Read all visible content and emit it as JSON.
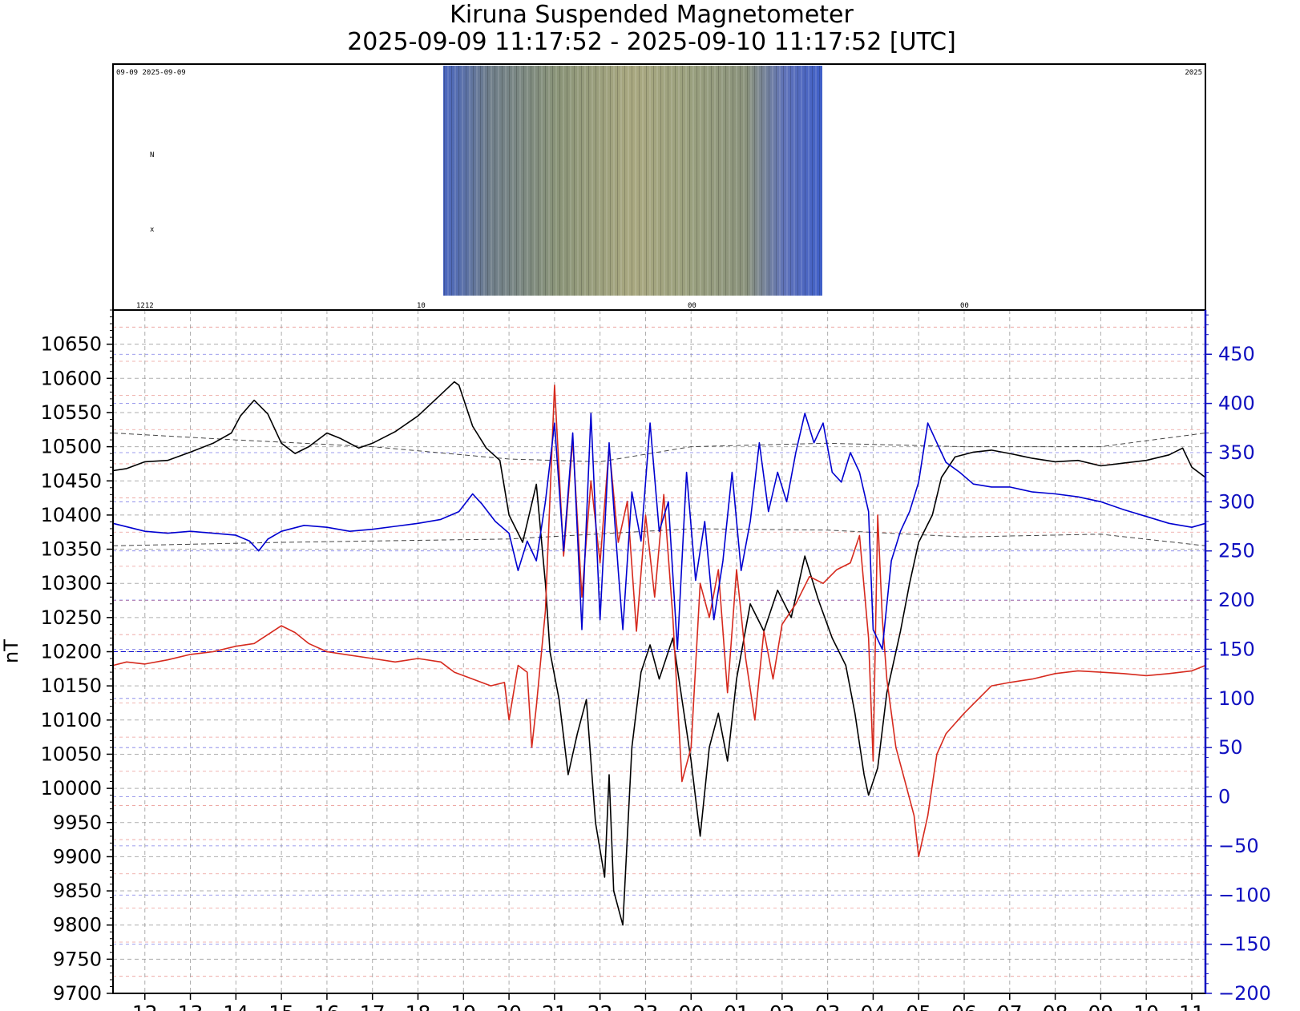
{
  "title_line1": "Kiruna Suspended Magnetometer",
  "title_line2": "2025-09-09 11:17:52 - 2025-09-10 11:17:52 [UTC]",
  "keogram": {
    "label_top_left": "09-09 2025-09-09",
    "label_top_right": "2025",
    "label_bottom": [
      "1212",
      "10",
      "00",
      "00"
    ]
  },
  "colors": {
    "black_series": "#000000",
    "red_series": "#d62a1e",
    "blue_series": "#0000d0",
    "right_axis": "#1010c0",
    "grid": "#999999"
  },
  "chart_data": {
    "type": "line",
    "title": "Kiruna Suspended Magnetometer",
    "subtitle": "2025-09-09 11:17:52 - 2025-09-10 11:17:52 [UTC]",
    "ylabel": "nT",
    "ylim": [
      9700,
      10700
    ],
    "y2lim": [
      -200,
      495
    ],
    "y_ticks": [
      "10650",
      "10600",
      "10550",
      "10500",
      "10450",
      "10400",
      "10350",
      "10300",
      "10250",
      "10200",
      "10150",
      "10100",
      "10050",
      "10000",
      "9950",
      "9900",
      "9850",
      "9800",
      "9750",
      "9700"
    ],
    "y2_ticks": [
      "450",
      "400",
      "350",
      "300",
      "250",
      "200",
      "150",
      "100",
      "50",
      "0",
      "−50",
      "−100",
      "−150",
      "−200"
    ],
    "x_ticks": [
      "12",
      "13",
      "14",
      "15",
      "16",
      "17",
      "18",
      "19",
      "20",
      "21",
      "22",
      "23",
      "00",
      "01",
      "02",
      "03",
      "04",
      "05",
      "06",
      "07",
      "08",
      "09",
      "10",
      "11"
    ],
    "xlim_hours": [
      11.3,
      35.3
    ],
    "grid": true,
    "series": [
      {
        "axis": "left",
        "color": "#000000",
        "points": [
          [
            11.3,
            10465
          ],
          [
            11.6,
            10468
          ],
          [
            12.0,
            10478
          ],
          [
            12.5,
            10480
          ],
          [
            13.0,
            10492
          ],
          [
            13.5,
            10505
          ],
          [
            13.9,
            10520
          ],
          [
            14.1,
            10545
          ],
          [
            14.4,
            10568
          ],
          [
            14.7,
            10548
          ],
          [
            15.0,
            10505
          ],
          [
            15.3,
            10490
          ],
          [
            15.6,
            10500
          ],
          [
            16.0,
            10520
          ],
          [
            16.3,
            10512
          ],
          [
            16.7,
            10498
          ],
          [
            17.0,
            10505
          ],
          [
            17.5,
            10522
          ],
          [
            18.0,
            10545
          ],
          [
            18.4,
            10570
          ],
          [
            18.8,
            10595
          ],
          [
            18.9,
            10590
          ],
          [
            19.2,
            10530
          ],
          [
            19.5,
            10498
          ],
          [
            19.8,
            10480
          ],
          [
            20.0,
            10400
          ],
          [
            20.3,
            10360
          ],
          [
            20.6,
            10445
          ],
          [
            20.8,
            10300
          ],
          [
            20.9,
            10200
          ],
          [
            21.1,
            10130
          ],
          [
            21.3,
            10020
          ],
          [
            21.5,
            10080
          ],
          [
            21.7,
            10130
          ],
          [
            21.9,
            9950
          ],
          [
            22.1,
            9870
          ],
          [
            22.2,
            10020
          ],
          [
            22.3,
            9850
          ],
          [
            22.5,
            9800
          ],
          [
            22.7,
            10060
          ],
          [
            22.9,
            10170
          ],
          [
            23.1,
            10210
          ],
          [
            23.3,
            10160
          ],
          [
            23.6,
            10220
          ],
          [
            23.8,
            10130
          ],
          [
            24.0,
            10040
          ],
          [
            24.2,
            9930
          ],
          [
            24.4,
            10060
          ],
          [
            24.6,
            10110
          ],
          [
            24.8,
            10040
          ],
          [
            25.0,
            10160
          ],
          [
            25.3,
            10270
          ],
          [
            25.6,
            10230
          ],
          [
            25.9,
            10290
          ],
          [
            26.2,
            10250
          ],
          [
            26.5,
            10340
          ],
          [
            26.8,
            10275
          ],
          [
            27.1,
            10220
          ],
          [
            27.4,
            10180
          ],
          [
            27.6,
            10110
          ],
          [
            27.8,
            10020
          ],
          [
            27.9,
            9990
          ],
          [
            28.1,
            10030
          ],
          [
            28.3,
            10140
          ],
          [
            28.6,
            10230
          ],
          [
            28.8,
            10300
          ],
          [
            29.0,
            10360
          ],
          [
            29.3,
            10400
          ],
          [
            29.5,
            10455
          ],
          [
            29.8,
            10485
          ],
          [
            30.2,
            10492
          ],
          [
            30.6,
            10495
          ],
          [
            31.0,
            10490
          ],
          [
            31.5,
            10483
          ],
          [
            32.0,
            10478
          ],
          [
            32.5,
            10480
          ],
          [
            33.0,
            10472
          ],
          [
            33.5,
            10476
          ],
          [
            34.0,
            10480
          ],
          [
            34.5,
            10488
          ],
          [
            34.8,
            10498
          ],
          [
            35.0,
            10470
          ],
          [
            35.3,
            10455
          ]
        ]
      },
      {
        "axis": "left",
        "color": "#d62a1e",
        "points": [
          [
            11.3,
            10180
          ],
          [
            11.6,
            10185
          ],
          [
            12.0,
            10182
          ],
          [
            12.5,
            10188
          ],
          [
            13.0,
            10196
          ],
          [
            13.5,
            10200
          ],
          [
            14.0,
            10208
          ],
          [
            14.4,
            10212
          ],
          [
            14.7,
            10225
          ],
          [
            15.0,
            10238
          ],
          [
            15.3,
            10228
          ],
          [
            15.6,
            10212
          ],
          [
            16.0,
            10200
          ],
          [
            16.5,
            10195
          ],
          [
            17.0,
            10190
          ],
          [
            17.5,
            10185
          ],
          [
            18.0,
            10190
          ],
          [
            18.5,
            10185
          ],
          [
            18.8,
            10170
          ],
          [
            19.2,
            10160
          ],
          [
            19.6,
            10150
          ],
          [
            19.9,
            10155
          ],
          [
            20.0,
            10100
          ],
          [
            20.2,
            10180
          ],
          [
            20.4,
            10170
          ],
          [
            20.5,
            10060
          ],
          [
            20.6,
            10120
          ],
          [
            20.8,
            10260
          ],
          [
            21.0,
            10590
          ],
          [
            21.2,
            10340
          ],
          [
            21.4,
            10510
          ],
          [
            21.6,
            10280
          ],
          [
            21.8,
            10450
          ],
          [
            22.0,
            10330
          ],
          [
            22.2,
            10500
          ],
          [
            22.4,
            10360
          ],
          [
            22.6,
            10420
          ],
          [
            22.8,
            10230
          ],
          [
            23.0,
            10400
          ],
          [
            23.2,
            10280
          ],
          [
            23.4,
            10430
          ],
          [
            23.6,
            10250
          ],
          [
            23.8,
            10010
          ],
          [
            24.0,
            10060
          ],
          [
            24.2,
            10300
          ],
          [
            24.4,
            10250
          ],
          [
            24.6,
            10320
          ],
          [
            24.8,
            10140
          ],
          [
            25.0,
            10320
          ],
          [
            25.2,
            10190
          ],
          [
            25.4,
            10100
          ],
          [
            25.6,
            10230
          ],
          [
            25.8,
            10160
          ],
          [
            26.0,
            10240
          ],
          [
            26.3,
            10270
          ],
          [
            26.6,
            10310
          ],
          [
            26.9,
            10300
          ],
          [
            27.2,
            10320
          ],
          [
            27.5,
            10330
          ],
          [
            27.7,
            10370
          ],
          [
            27.9,
            10220
          ],
          [
            28.0,
            10040
          ],
          [
            28.1,
            10400
          ],
          [
            28.2,
            10250
          ],
          [
            28.3,
            10160
          ],
          [
            28.5,
            10060
          ],
          [
            28.7,
            10010
          ],
          [
            28.9,
            9960
          ],
          [
            29.0,
            9900
          ],
          [
            29.2,
            9960
          ],
          [
            29.4,
            10050
          ],
          [
            29.6,
            10080
          ],
          [
            29.8,
            10095
          ],
          [
            30.0,
            10110
          ],
          [
            30.3,
            10130
          ],
          [
            30.6,
            10150
          ],
          [
            31.0,
            10155
          ],
          [
            31.5,
            10160
          ],
          [
            32.0,
            10168
          ],
          [
            32.5,
            10172
          ],
          [
            33.0,
            10170
          ],
          [
            33.5,
            10168
          ],
          [
            34.0,
            10165
          ],
          [
            34.5,
            10168
          ],
          [
            35.0,
            10172
          ],
          [
            35.3,
            10180
          ]
        ]
      },
      {
        "axis": "right",
        "color": "#0000d0",
        "points": [
          [
            11.3,
            278
          ],
          [
            12.0,
            270
          ],
          [
            12.5,
            268
          ],
          [
            13.0,
            270
          ],
          [
            13.5,
            268
          ],
          [
            14.0,
            266
          ],
          [
            14.3,
            260
          ],
          [
            14.5,
            250
          ],
          [
            14.7,
            262
          ],
          [
            15.0,
            270
          ],
          [
            15.5,
            276
          ],
          [
            16.0,
            274
          ],
          [
            16.5,
            270
          ],
          [
            17.0,
            272
          ],
          [
            17.5,
            275
          ],
          [
            18.0,
            278
          ],
          [
            18.5,
            282
          ],
          [
            18.9,
            290
          ],
          [
            19.2,
            308
          ],
          [
            19.4,
            298
          ],
          [
            19.7,
            280
          ],
          [
            20.0,
            268
          ],
          [
            20.2,
            230
          ],
          [
            20.4,
            260
          ],
          [
            20.6,
            240
          ],
          [
            20.8,
            300
          ],
          [
            21.0,
            380
          ],
          [
            21.2,
            250
          ],
          [
            21.4,
            370
          ],
          [
            21.6,
            170
          ],
          [
            21.8,
            390
          ],
          [
            22.0,
            180
          ],
          [
            22.2,
            360
          ],
          [
            22.4,
            230
          ],
          [
            22.5,
            170
          ],
          [
            22.7,
            310
          ],
          [
            22.9,
            260
          ],
          [
            23.1,
            380
          ],
          [
            23.3,
            270
          ],
          [
            23.5,
            300
          ],
          [
            23.7,
            150
          ],
          [
            23.9,
            330
          ],
          [
            24.1,
            220
          ],
          [
            24.3,
            280
          ],
          [
            24.5,
            180
          ],
          [
            24.7,
            240
          ],
          [
            24.9,
            330
          ],
          [
            25.1,
            230
          ],
          [
            25.3,
            280
          ],
          [
            25.5,
            360
          ],
          [
            25.7,
            290
          ],
          [
            25.9,
            330
          ],
          [
            26.1,
            300
          ],
          [
            26.3,
            350
          ],
          [
            26.5,
            390
          ],
          [
            26.7,
            360
          ],
          [
            26.9,
            380
          ],
          [
            27.1,
            330
          ],
          [
            27.3,
            320
          ],
          [
            27.5,
            350
          ],
          [
            27.7,
            330
          ],
          [
            27.9,
            290
          ],
          [
            28.0,
            170
          ],
          [
            28.2,
            150
          ],
          [
            28.4,
            240
          ],
          [
            28.6,
            270
          ],
          [
            28.8,
            290
          ],
          [
            29.0,
            320
          ],
          [
            29.2,
            380
          ],
          [
            29.4,
            360
          ],
          [
            29.6,
            340
          ],
          [
            29.9,
            330
          ],
          [
            30.2,
            318
          ],
          [
            30.6,
            315
          ],
          [
            31.0,
            315
          ],
          [
            31.5,
            310
          ],
          [
            32.0,
            308
          ],
          [
            32.5,
            305
          ],
          [
            33.0,
            300
          ],
          [
            33.5,
            292
          ],
          [
            34.0,
            285
          ],
          [
            34.5,
            278
          ],
          [
            35.0,
            274
          ],
          [
            35.3,
            278
          ]
        ]
      }
    ]
  }
}
